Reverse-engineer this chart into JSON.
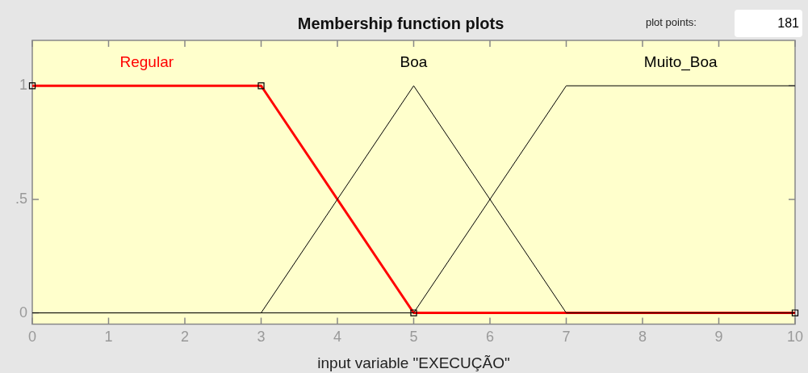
{
  "chart_data": {
    "type": "line",
    "title": "Membership function plots",
    "xlabel": "input variable \"EXECUÇÃO\"",
    "xlim": [
      0,
      10
    ],
    "xticks": [
      0,
      1,
      2,
      3,
      4,
      5,
      6,
      7,
      8,
      9,
      10
    ],
    "ylim": [
      -0.05,
      1.2
    ],
    "yticks": [
      0,
      {
        "value": 0.5,
        "label": ".5"
      },
      1
    ],
    "grid": false,
    "legend": false,
    "annotations": [
      "plot points:",
      "181"
    ],
    "series": [
      {
        "name": "Regular",
        "color": "#ff0000",
        "x": [
          0,
          3,
          5,
          10
        ],
        "values": [
          1,
          1,
          0,
          0
        ],
        "marker": "square"
      },
      {
        "name": "Boa",
        "color": "#000000",
        "x": [
          0,
          3,
          5,
          7,
          10
        ],
        "values": [
          0,
          0,
          1,
          0,
          0
        ]
      },
      {
        "name": "Muito_Boa",
        "color": "#000000",
        "x": [
          0,
          5,
          7,
          10
        ],
        "values": [
          0,
          0,
          1,
          1
        ]
      }
    ]
  }
}
